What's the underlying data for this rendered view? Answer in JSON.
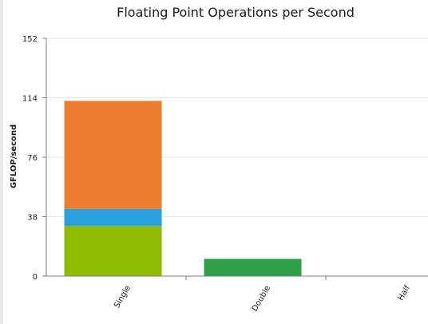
{
  "chart_data": {
    "type": "bar",
    "stacked": true,
    "title": "Floating Point Operations per Second",
    "xlabel": "",
    "ylabel": "GFLOP/second",
    "ylim": [
      0,
      152
    ],
    "yticks": [
      "0",
      "38",
      "76",
      "114",
      "152"
    ],
    "categories": [
      "Single",
      "Double",
      "Half"
    ],
    "grid": true,
    "series": [
      {
        "color": "#8fbc00",
        "values": [
          32,
          0,
          0
        ]
      },
      {
        "color": "#2aa0dc",
        "values": [
          11,
          0,
          0
        ]
      },
      {
        "color": "#ee7d2f",
        "values": [
          69,
          0,
          0
        ]
      },
      {
        "color": "#2e9e48",
        "values": [
          0,
          11,
          0
        ]
      }
    ]
  }
}
